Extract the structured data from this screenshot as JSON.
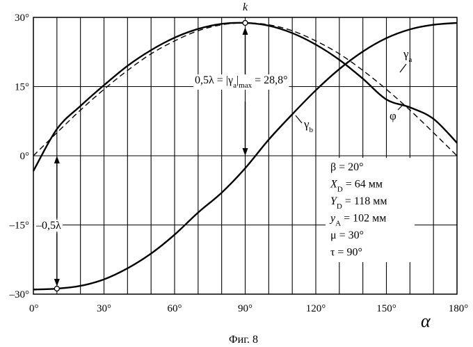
{
  "chart_data": {
    "type": "line",
    "title": "",
    "caption": "Фиг. 8",
    "xlabel": "α",
    "ylabel": "",
    "xlim": [
      0,
      180
    ],
    "ylim": [
      -30,
      30
    ],
    "grid": {
      "vertical_step": 10,
      "horizontal_step": 15
    },
    "x_ticks": [
      {
        "value": 0,
        "label": "0°"
      },
      {
        "value": 30,
        "label": "30°"
      },
      {
        "value": 60,
        "label": "60°"
      },
      {
        "value": 90,
        "label": "90°"
      },
      {
        "value": 120,
        "label": "120°"
      },
      {
        "value": 150,
        "label": "150°"
      },
      {
        "value": 180,
        "label": "180°"
      }
    ],
    "y_ticks": [
      {
        "value": 30,
        "label": "30°"
      },
      {
        "value": 15,
        "label": "15°"
      },
      {
        "value": 0,
        "label": "0°"
      },
      {
        "value": -15,
        "label": "–15°"
      },
      {
        "value": -30,
        "label": "–30°"
      }
    ],
    "series": [
      {
        "name": "γa",
        "style": "solid",
        "x": [
          0,
          10,
          20,
          30,
          40,
          50,
          60,
          70,
          80,
          90,
          100,
          110,
          120,
          130,
          140,
          150,
          160,
          170,
          180
        ],
        "y": [
          -3.3,
          5.8,
          10.8,
          15.3,
          19.5,
          22.9,
          25.6,
          27.5,
          28.6,
          28.8,
          28.2,
          26.6,
          24.1,
          20.8,
          16.7,
          12.2,
          10.5,
          8.0,
          2.8
        ]
      },
      {
        "name": "φ",
        "style": "dashed",
        "x": [
          0,
          10,
          20,
          30,
          40,
          50,
          60,
          70,
          80,
          90,
          100,
          110,
          120,
          130,
          140,
          150,
          160,
          170,
          180
        ],
        "y": [
          0,
          5.0,
          9.9,
          14.4,
          18.5,
          22.1,
          24.9,
          27.1,
          28.4,
          28.8,
          28.4,
          27.1,
          24.9,
          22.1,
          18.5,
          14.4,
          9.9,
          5.0,
          0
        ]
      },
      {
        "name": "γb",
        "style": "solid",
        "x": [
          0,
          10,
          20,
          30,
          40,
          50,
          60,
          70,
          80,
          90,
          100,
          110,
          120,
          130,
          140,
          150,
          160,
          170,
          180
        ],
        "y": [
          -29.0,
          -28.8,
          -28.2,
          -26.8,
          -24.4,
          -21.2,
          -17.1,
          -12.3,
          -8.0,
          -2.7,
          3.5,
          9.0,
          14.2,
          18.8,
          22.6,
          25.5,
          27.4,
          28.4,
          28.8
        ]
      }
    ],
    "points": [
      {
        "name": "k",
        "label": "k",
        "x": 90,
        "y": 28.8
      },
      {
        "name": "min",
        "label": "",
        "x": 10,
        "y": -28.8
      }
    ],
    "annotations": {
      "upper_formula": {
        "prefix": "0,5λ = |γ",
        "sub1": "a",
        "mid": "|",
        "sub2": "max",
        "suffix": " = 28,8°"
      },
      "lower_label": "–0,5λ",
      "parameters": [
        {
          "main": "β = 20°",
          "sub": "",
          "rest": ""
        },
        {
          "main": "X",
          "sub": "D",
          "rest": " = 64 мм"
        },
        {
          "main": "Y",
          "sub": "D",
          "rest": " = 118 мм"
        },
        {
          "main": "y",
          "sub": "A",
          "rest": " = 102 мм"
        },
        {
          "main": "μ = 30°",
          "sub": "",
          "rest": ""
        },
        {
          "main": "τ = 90°",
          "sub": "",
          "rest": ""
        }
      ],
      "series_labels": {
        "gamma_a": {
          "main": "γ",
          "sub": "a"
        },
        "gamma_b": {
          "main": "γ",
          "sub": "b"
        },
        "phi": {
          "main": "φ",
          "sub": ""
        }
      }
    }
  }
}
